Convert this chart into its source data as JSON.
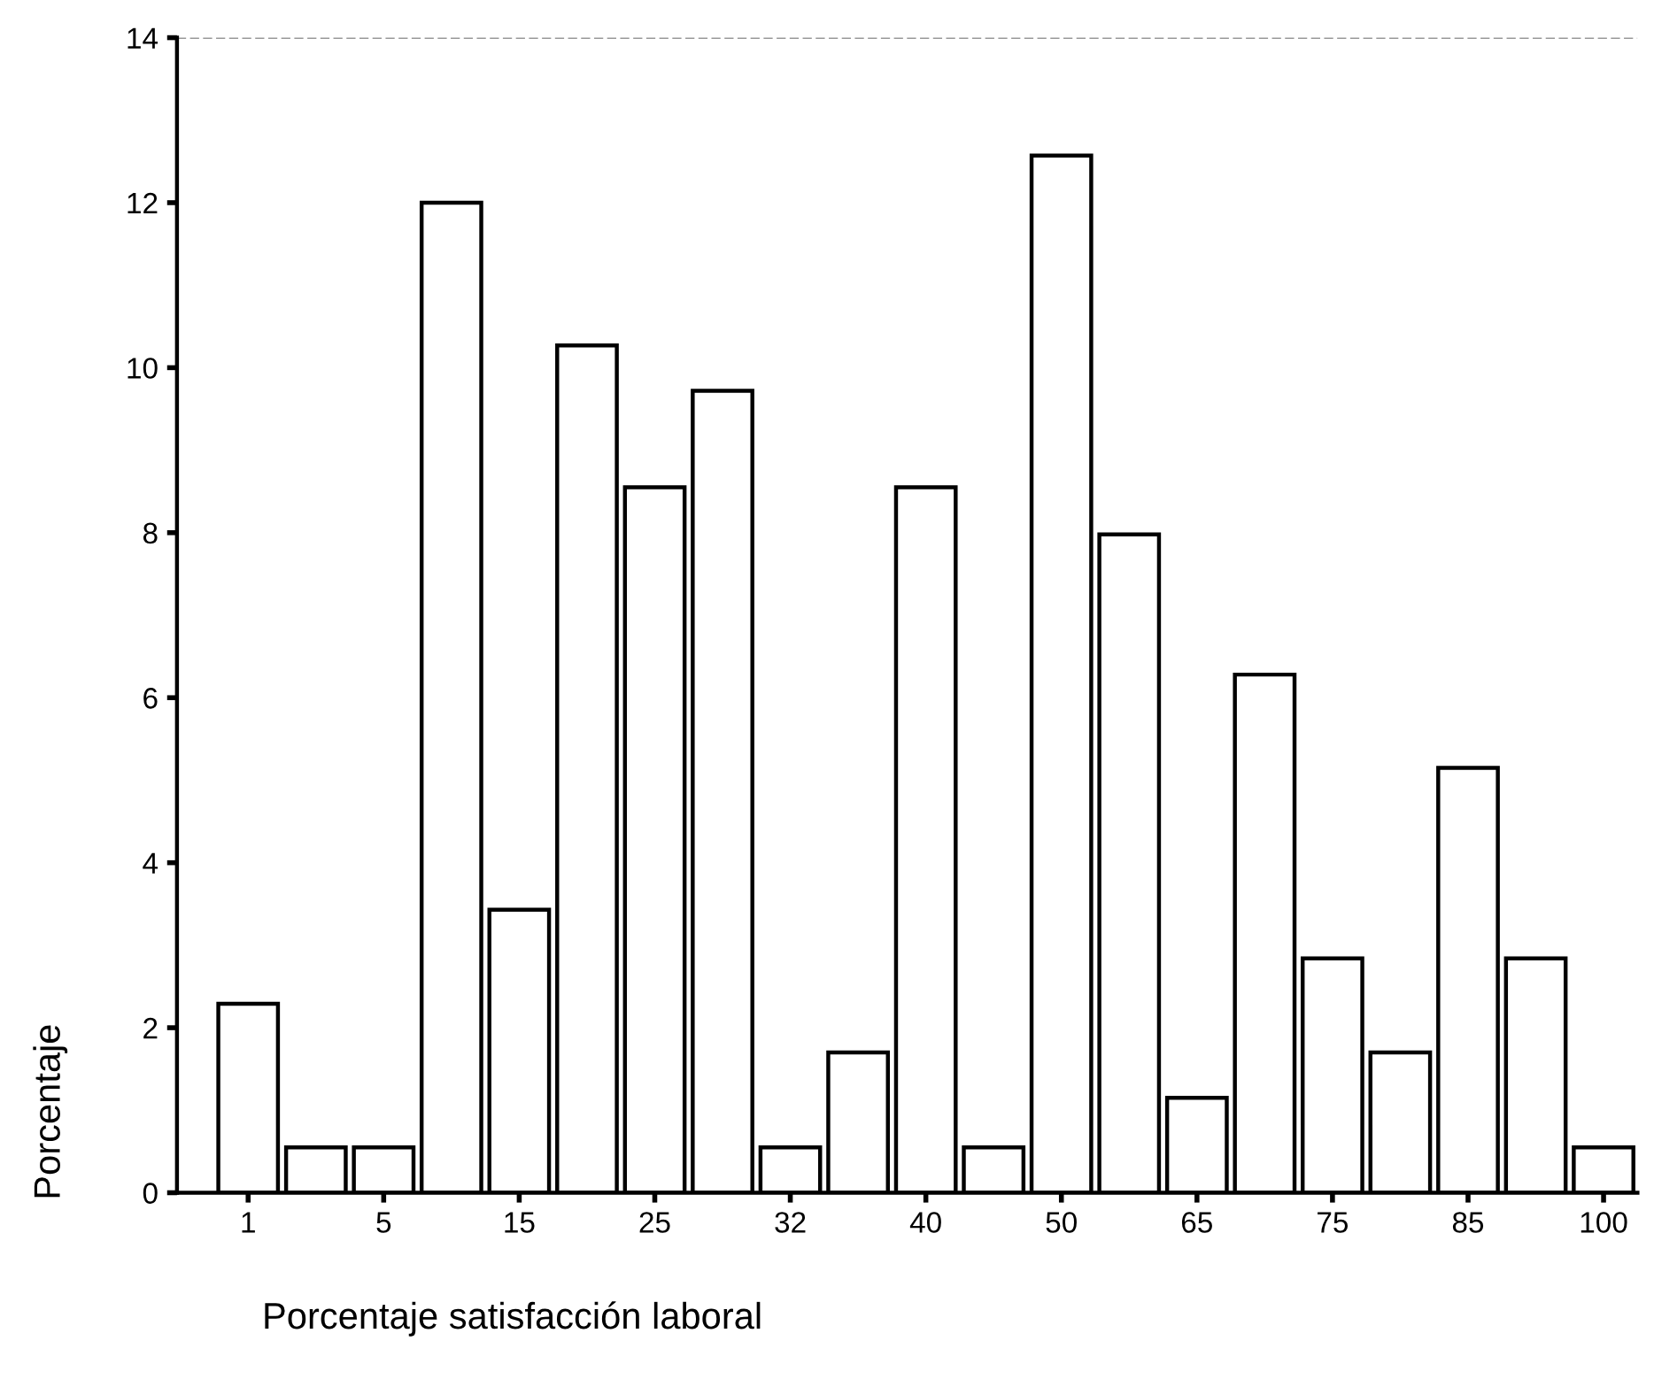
{
  "chart_data": {
    "type": "bar",
    "xlabel": "Porcentaje satisfacción laboral",
    "ylabel": "Porcentaje",
    "categories": [
      "1",
      null,
      "5",
      null,
      "15",
      null,
      "25",
      null,
      "32",
      null,
      "40",
      null,
      "50",
      null,
      "65",
      null,
      "75",
      null,
      "85",
      null,
      "100"
    ],
    "values": [
      2.29,
      0.55,
      0.55,
      12.0,
      3.43,
      10.27,
      8.55,
      9.72,
      0.55,
      1.7,
      8.55,
      0.55,
      12.57,
      7.98,
      1.15,
      6.28,
      2.84,
      1.7,
      5.15,
      2.84,
      0.55
    ],
    "color": "#ffffff",
    "ylim": [
      0,
      14
    ],
    "yticks": [
      0,
      2,
      4,
      6,
      8,
      10,
      12,
      14
    ],
    "grid": false,
    "legend": false,
    "ref_lines": [
      {
        "axis": "y",
        "value": 14,
        "color": "#999999",
        "line_style": "dashed"
      }
    ]
  }
}
